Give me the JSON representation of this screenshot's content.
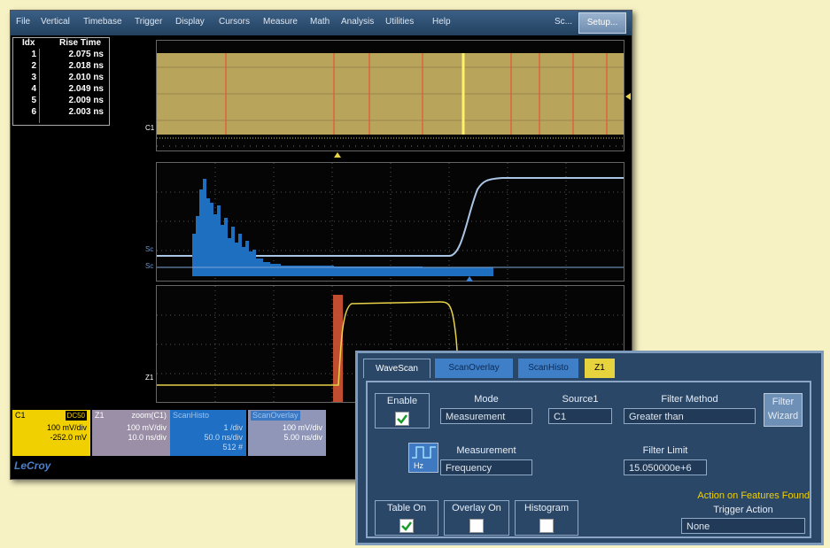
{
  "menu": {
    "items": [
      "File",
      "Vertical",
      "Timebase",
      "Trigger",
      "Display",
      "Cursors",
      "Measure",
      "Math",
      "Analysis",
      "Utilities",
      "Help"
    ],
    "scope_label": "Sc...",
    "setup_label": "Setup..."
  },
  "rise_table": {
    "idx_header": "Idx",
    "value_header": "Rise Time",
    "rows": [
      {
        "idx": "1",
        "value": "2.075 ns"
      },
      {
        "idx": "2",
        "value": "2.018 ns"
      },
      {
        "idx": "3",
        "value": "2.010 ns"
      },
      {
        "idx": "4",
        "value": "2.049 ns"
      },
      {
        "idx": "5",
        "value": "2.009 ns"
      },
      {
        "idx": "6",
        "value": "2.003 ns"
      }
    ]
  },
  "traces": {
    "c1_label": "C1",
    "mid_label_1": "Sc",
    "mid_label_2": "Sc",
    "z1_label": "Z1"
  },
  "tiles": {
    "c1": {
      "title": "C1",
      "badge": "DC50",
      "line1": "100 mV/div",
      "line2": "-252.0 mV"
    },
    "z1": {
      "title": "Z1",
      "zoom": "zoom(C1)",
      "line1": "100 mV/div",
      "line2": "10.0 ns/div"
    },
    "scanhisto": {
      "title": "ScanHisto",
      "line1": "1 /div",
      "line2": "50.0 ns/div",
      "line3": "512 #"
    },
    "scanoverlay": {
      "title": "ScanOverlay",
      "line1": "100 mV/div",
      "line2": "5.00 ns/div"
    }
  },
  "brand": "LeCroy",
  "panel": {
    "tabs": [
      "WaveScan",
      "ScanOverlay",
      "ScanHisto",
      "Z1"
    ],
    "enable_label": "Enable",
    "enable_checked": true,
    "mode_label": "Mode",
    "mode_value": "Measurement",
    "source_label": "Source1",
    "source_value": "C1",
    "filter_method_label": "Filter Method",
    "filter_method_value": "Greater than",
    "filter_wizard_line1": "Filter",
    "filter_wizard_line2": "Wizard",
    "measurement_label": "Measurement",
    "measurement_value": "Frequency",
    "measurement_icon_text": "Hz",
    "filter_limit_label": "Filter Limit",
    "filter_limit_value": "15.050000e+6",
    "table_on_label": "Table On",
    "table_on_checked": true,
    "overlay_on_label": "Overlay On",
    "overlay_on_checked": false,
    "histogram_label": "Histogram",
    "histogram_checked": false,
    "action_label": "Action on Features Found",
    "trigger_action_label": "Trigger Action",
    "trigger_action_value": "None"
  },
  "colors": {
    "background": "#f7f2c4",
    "trace_yellow": "#e8d24a",
    "histogram_blue": "#1e6fc0",
    "highlight_red": "#e35a3a",
    "panel_blue": "#2b4768",
    "action_yellow": "#f0d000"
  }
}
